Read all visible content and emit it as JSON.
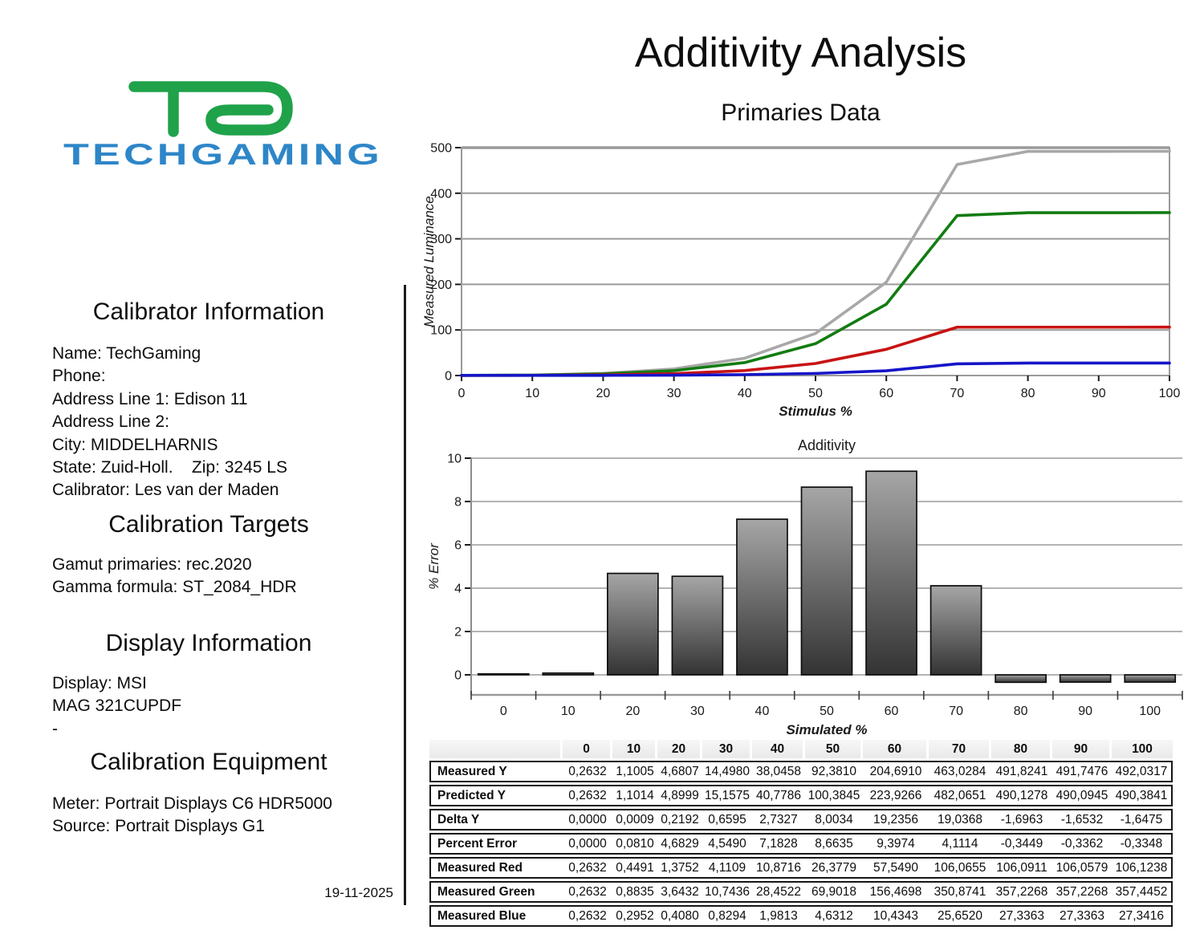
{
  "header": {
    "title": "Additivity Analysis",
    "subtitle": "Primaries Data"
  },
  "logo": {
    "text": "TECHGAMING",
    "green": "#1fa24a",
    "blue": "#2e86c8"
  },
  "left_panel": {
    "calibrator": {
      "heading": "Calibrator Information",
      "lines": [
        "Name: TechGaming",
        "Phone:",
        "Address Line 1: Edison 11",
        "Address Line 2:",
        "City: MIDDELHARNIS",
        "State: Zuid-Holl.    Zip: 3245 LS",
        "Calibrator: Les van der Maden"
      ]
    },
    "targets": {
      "heading": "Calibration Targets",
      "lines": [
        "Gamut primaries: rec.2020",
        "Gamma formula: ST_2084_HDR"
      ]
    },
    "display": {
      "heading": "Display Information",
      "lines": [
        "Display: MSI",
        "MAG 321CUPDF",
        "-"
      ]
    },
    "equipment": {
      "heading": "Calibration Equipment",
      "lines": [
        "Meter: Portrait Displays C6 HDR5000",
        "Source: Portrait Displays G1"
      ]
    },
    "date": "19-11-2025"
  },
  "chart_data": [
    {
      "type": "line",
      "title": "",
      "xlabel": "Stimulus %",
      "ylabel": "Measured Luminance",
      "x": [
        0,
        10,
        20,
        30,
        40,
        50,
        60,
        70,
        80,
        90,
        100
      ],
      "ylim": [
        0,
        500
      ],
      "yticks": [
        0,
        100,
        200,
        300,
        400,
        500
      ],
      "grid": true,
      "legend": "none",
      "series": [
        {
          "name": "Measured Y",
          "color": "#a8a8a8",
          "values": [
            0.2632,
            1.1005,
            4.6807,
            14.498,
            38.0458,
            92.381,
            204.691,
            463.0284,
            491.8241,
            491.7476,
            492.0317
          ]
        },
        {
          "name": "Measured Green",
          "color": "#127c12",
          "values": [
            0.2632,
            0.8835,
            3.6432,
            10.7436,
            28.4522,
            69.9018,
            156.4698,
            350.8741,
            357.2268,
            357.2268,
            357.4452
          ]
        },
        {
          "name": "Measured Red",
          "color": "#c81313",
          "values": [
            0.2632,
            0.4491,
            1.3752,
            4.1109,
            10.8716,
            26.3779,
            57.549,
            106.0655,
            106.0911,
            106.0579,
            106.1238
          ]
        },
        {
          "name": "Measured Blue",
          "color": "#1515c8",
          "values": [
            0.2632,
            0.2952,
            0.408,
            0.8294,
            1.9813,
            4.6312,
            10.4343,
            25.652,
            27.3363,
            27.3363,
            27.3416
          ]
        }
      ]
    },
    {
      "type": "bar",
      "title": "Additivity",
      "xlabel": "Simulated %",
      "ylabel": "% Error",
      "categories": [
        "0",
        "10",
        "20",
        "30",
        "40",
        "50",
        "60",
        "70",
        "80",
        "90",
        "100"
      ],
      "values": [
        0.0,
        0.081,
        4.6829,
        4.549,
        7.1828,
        8.6635,
        9.3974,
        4.1114,
        -0.3449,
        -0.3362,
        -0.3348
      ],
      "ylim": [
        -1,
        10
      ],
      "yticks": [
        0,
        2,
        4,
        6,
        8,
        10
      ],
      "grid": true,
      "bar_gradient_top": "#a6a6a6",
      "bar_gradient_bottom": "#333333",
      "bar_outline": "#0d0d0d"
    }
  ],
  "results_table": {
    "corner_label": "",
    "columns": [
      "0",
      "10",
      "20",
      "30",
      "40",
      "50",
      "60",
      "70",
      "80",
      "90",
      "100"
    ],
    "rows": [
      {
        "label": "Measured Y",
        "values": [
          "0,2632",
          "1,1005",
          "4,6807",
          "14,4980",
          "38,0458",
          "92,3810",
          "204,6910",
          "463,0284",
          "491,8241",
          "491,7476",
          "492,0317"
        ]
      },
      {
        "label": "Predicted Y",
        "values": [
          "0,2632",
          "1,1014",
          "4,8999",
          "15,1575",
          "40,7786",
          "100,3845",
          "223,9266",
          "482,0651",
          "490,1278",
          "490,0945",
          "490,3841"
        ]
      },
      {
        "label": "Delta Y",
        "values": [
          "0,0000",
          "0,0009",
          "0,2192",
          "0,6595",
          "2,7327",
          "8,0034",
          "19,2356",
          "19,0368",
          "-1,6963",
          "-1,6532",
          "-1,6475"
        ]
      },
      {
        "label": "Percent Error",
        "values": [
          "0,0000",
          "0,0810",
          "4,6829",
          "4,5490",
          "7,1828",
          "8,6635",
          "9,3974",
          "4,1114",
          "-0,3449",
          "-0,3362",
          "-0,3348"
        ]
      },
      {
        "label": "Measured Red",
        "values": [
          "0,2632",
          "0,4491",
          "1,3752",
          "4,1109",
          "10,8716",
          "26,3779",
          "57,5490",
          "106,0655",
          "106,0911",
          "106,0579",
          "106,1238"
        ]
      },
      {
        "label": "Measured Green",
        "values": [
          "0,2632",
          "0,8835",
          "3,6432",
          "10,7436",
          "28,4522",
          "69,9018",
          "156,4698",
          "350,8741",
          "357,2268",
          "357,2268",
          "357,4452"
        ]
      },
      {
        "label": "Measured Blue",
        "values": [
          "0,2632",
          "0,2952",
          "0,4080",
          "0,8294",
          "1,9813",
          "4,6312",
          "10,4343",
          "25,6520",
          "27,3363",
          "27,3363",
          "27,3416"
        ]
      }
    ]
  }
}
